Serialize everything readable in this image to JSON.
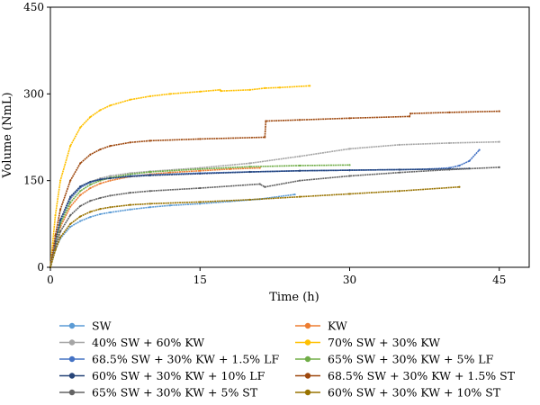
{
  "chart_data": {
    "type": "line",
    "xlabel": "Time (h)",
    "ylabel": "Volume (NmL)",
    "xlim": [
      0,
      48
    ],
    "ylim": [
      0,
      450
    ],
    "xticks": [
      "0",
      "15",
      "30",
      "45"
    ],
    "yticks": [
      "0",
      "150",
      "300",
      "450"
    ],
    "grid": false,
    "legend_position": "bottom, two columns",
    "series": [
      {
        "name": "SW",
        "color": "#5b9bd5",
        "x": [
          0,
          0.5,
          1,
          2,
          3,
          4,
          5,
          6,
          8,
          10,
          12,
          15,
          18,
          21,
          24.5
        ],
        "y": [
          0,
          30,
          50,
          70,
          80,
          87,
          92,
          95,
          100,
          104,
          107,
          110,
          114,
          118,
          126
        ]
      },
      {
        "name": "KW",
        "color": "#ed7d31",
        "x": [
          0,
          0.5,
          1,
          2,
          3,
          4,
          5,
          6,
          8,
          10,
          12,
          15,
          18,
          21
        ],
        "y": [
          0,
          40,
          70,
          105,
          125,
          137,
          145,
          150,
          157,
          161,
          164,
          167,
          170,
          172
        ]
      },
      {
        "name": "40% SW + 60% KW",
        "color": "#a5a5a5",
        "x": [
          0,
          0.5,
          1,
          2,
          3,
          4,
          5,
          6,
          8,
          10,
          15,
          20,
          25,
          30,
          35,
          40,
          45
        ],
        "y": [
          0,
          45,
          80,
          118,
          138,
          148,
          154,
          158,
          163,
          166,
          172,
          180,
          192,
          205,
          212,
          215,
          217
        ]
      },
      {
        "name": "70% SW + 30% KW",
        "color": "#ffc000",
        "x": [
          0,
          0.5,
          1,
          2,
          3,
          4,
          5,
          6,
          8,
          10,
          12,
          15,
          17,
          17.1,
          20,
          21.5,
          23,
          26
        ],
        "y": [
          0,
          90,
          150,
          210,
          242,
          260,
          272,
          280,
          290,
          296,
          300,
          304,
          307,
          305,
          307,
          310,
          311,
          314
        ]
      },
      {
        "name": "68.5% SW + 30% KW + 1.5% LF",
        "color": "#4472c4",
        "x": [
          0,
          0.5,
          1,
          2,
          3,
          4,
          5,
          6,
          8,
          10,
          15,
          20,
          25,
          30,
          35,
          38,
          40,
          41,
          42,
          43
        ],
        "y": [
          0,
          45,
          80,
          120,
          138,
          147,
          152,
          155,
          158,
          160,
          163,
          165,
          167,
          168,
          169,
          170,
          172,
          176,
          184,
          203
        ]
      },
      {
        "name": "65% SW + 30% KW + 5% LF",
        "color": "#70ad47",
        "x": [
          0,
          0.5,
          1,
          2,
          3,
          4,
          5,
          6,
          8,
          10,
          15,
          20,
          25,
          30
        ],
        "y": [
          0,
          42,
          75,
          112,
          132,
          143,
          150,
          155,
          161,
          165,
          170,
          174,
          176,
          177
        ]
      },
      {
        "name": "60% SW + 30% KW + 10% LF",
        "color": "#264478",
        "x": [
          0,
          0.5,
          1,
          2,
          3,
          4,
          5,
          6,
          8,
          10,
          15,
          20,
          25,
          30,
          35,
          40,
          42
        ],
        "y": [
          0,
          45,
          82,
          122,
          140,
          148,
          152,
          154,
          157,
          159,
          162,
          165,
          167,
          168,
          169,
          170,
          171
        ]
      },
      {
        "name": "68.5% SW + 30% KW + 1.5% ST",
        "color": "#9e480e",
        "x": [
          0,
          0.5,
          1,
          2,
          3,
          4,
          5,
          6,
          8,
          10,
          15,
          21.5,
          21.6,
          25,
          30,
          36,
          36.1,
          40,
          45
        ],
        "y": [
          0,
          55,
          100,
          150,
          180,
          195,
          204,
          210,
          216,
          219,
          222,
          225,
          253,
          255,
          258,
          261,
          266,
          268,
          270
        ]
      },
      {
        "name": "65% SW + 30% KW + 5% ST",
        "color": "#636363",
        "x": [
          0,
          0.5,
          1,
          2,
          3,
          4,
          5,
          6,
          8,
          10,
          15,
          21,
          21.5,
          25,
          30,
          35,
          40,
          45
        ],
        "y": [
          0,
          35,
          62,
          90,
          106,
          115,
          120,
          124,
          129,
          132,
          137,
          144,
          139,
          150,
          158,
          164,
          169,
          173
        ]
      },
      {
        "name": "60% SW + 30% KW + 10% ST",
        "color": "#997300",
        "x": [
          0,
          0.5,
          1,
          2,
          3,
          4,
          5,
          6,
          8,
          10,
          15,
          20,
          25,
          30,
          35,
          41
        ],
        "y": [
          0,
          30,
          52,
          75,
          88,
          96,
          101,
          104,
          108,
          110,
          113,
          117,
          122,
          127,
          132,
          139
        ]
      }
    ]
  }
}
